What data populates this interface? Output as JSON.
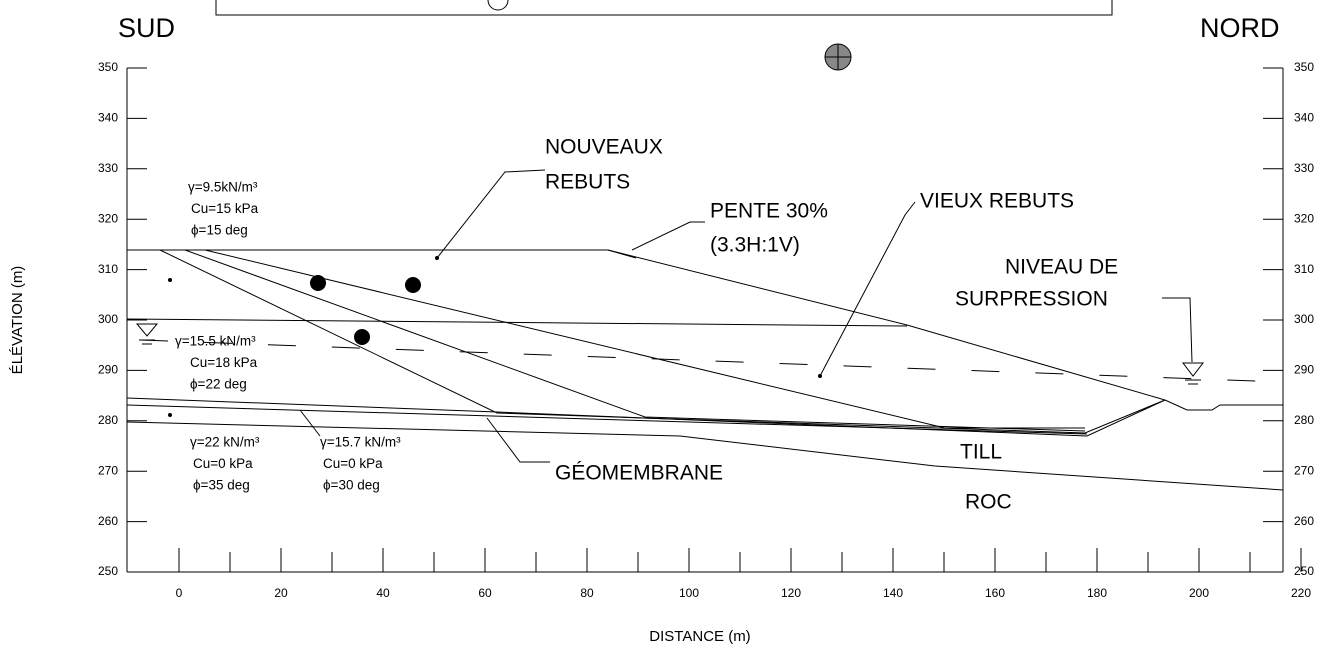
{
  "labels": {
    "south": "SUD",
    "north": "NORD",
    "y_axis": "ÉLÉVATION (m)",
    "x_axis": "DISTANCE (m)",
    "new_waste": [
      "NOUVEAUX",
      "REBUTS"
    ],
    "slope": [
      "PENTE 30%",
      "(3.3H:1V)"
    ],
    "old_waste": "VIEUX REBUTS",
    "pressure": [
      "NIVEAU DE",
      "SURPRESSION"
    ],
    "geomembrane": "GÉOMEMBRANE",
    "till": "TILL",
    "rock": "ROC"
  },
  "layers": [
    [
      "γ=9.5kN/m³",
      "Cu=15 kPa",
      "ϕ=15 deg"
    ],
    [
      "γ=15.5 kN/m³",
      "Cu=18 kPa",
      "ϕ=22 deg"
    ],
    [
      "γ=22 kN/m³",
      "Cu=0 kPa",
      "ϕ=35 deg"
    ],
    [
      "γ=15.7 kN/m³",
      "Cu=0 kPa",
      "ϕ=30 deg"
    ]
  ],
  "surfaces": [
    "1",
    "2",
    "3"
  ],
  "y_ticks": [
    350,
    340,
    330,
    320,
    310,
    300,
    290,
    280,
    270,
    260,
    250
  ],
  "x_ticks": [
    0,
    20,
    40,
    60,
    80,
    100,
    120,
    140,
    160,
    180,
    200,
    220
  ]
}
